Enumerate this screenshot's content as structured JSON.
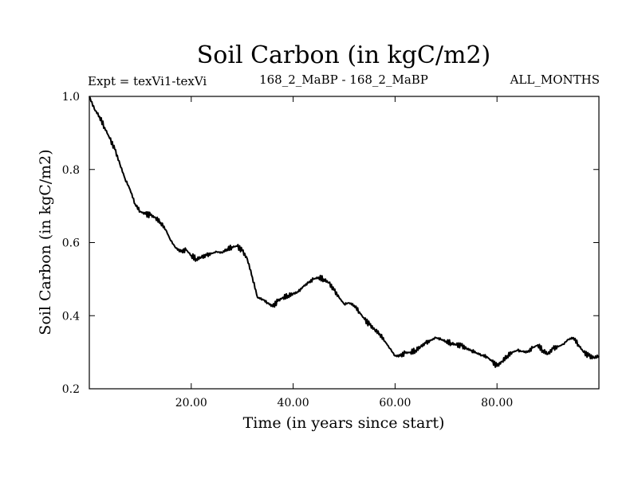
{
  "chart_data": {
    "type": "line",
    "title": "Soil Carbon (in kgC/m2)",
    "subtitle_left": "Expt = texVi1-texVi",
    "subtitle_center": "168_2_MaBP - 168_2_MaBP",
    "subtitle_right": "ALL_MONTHS",
    "xlabel": "Time (in years since start)",
    "ylabel": "Soil Carbon (in kgC/m2)",
    "xlim": [
      0,
      100
    ],
    "ylim": [
      0.2,
      1.0
    ],
    "x_ticks": [
      20,
      40,
      60,
      80
    ],
    "x_tick_labels": [
      "20.00",
      "40.00",
      "60.00",
      "80.00"
    ],
    "y_ticks": [
      0.2,
      0.4,
      0.6,
      0.8,
      1.0
    ],
    "y_tick_labels": [
      "0.2",
      "0.4",
      "0.6",
      "0.8",
      "1.0"
    ],
    "series": [
      {
        "name": "Soil Carbon",
        "color": "#000000",
        "x": [
          0,
          1,
          2,
          3,
          4,
          5,
          6,
          7,
          8,
          9,
          10,
          11,
          12,
          13,
          14,
          15,
          16,
          17,
          18,
          19,
          20,
          21,
          22,
          23,
          24,
          25,
          26,
          27,
          28,
          29,
          30,
          31,
          32,
          33,
          34,
          35,
          36,
          37,
          38,
          39,
          40,
          41,
          42,
          43,
          44,
          45,
          46,
          47,
          48,
          49,
          50,
          51,
          52,
          53,
          54,
          55,
          56,
          57,
          58,
          59,
          60,
          61,
          62,
          63,
          64,
          65,
          66,
          67,
          68,
          69,
          70,
          71,
          72,
          73,
          74,
          75,
          76,
          77,
          78,
          79,
          80,
          81,
          82,
          83,
          84,
          85,
          86,
          87,
          88,
          89,
          90,
          91,
          92,
          93,
          94,
          95,
          96,
          97,
          98,
          99,
          100
        ],
        "values": [
          1.0,
          0.965,
          0.945,
          0.915,
          0.885,
          0.855,
          0.815,
          0.775,
          0.745,
          0.705,
          0.685,
          0.678,
          0.675,
          0.668,
          0.655,
          0.635,
          0.605,
          0.585,
          0.575,
          0.58,
          0.565,
          0.555,
          0.56,
          0.565,
          0.57,
          0.575,
          0.572,
          0.582,
          0.588,
          0.59,
          0.578,
          0.555,
          0.505,
          0.45,
          0.445,
          0.435,
          0.425,
          0.44,
          0.45,
          0.455,
          0.46,
          0.465,
          0.48,
          0.49,
          0.5,
          0.505,
          0.5,
          0.49,
          0.47,
          0.45,
          0.432,
          0.435,
          0.428,
          0.41,
          0.39,
          0.375,
          0.362,
          0.35,
          0.33,
          0.31,
          0.29,
          0.29,
          0.298,
          0.3,
          0.305,
          0.315,
          0.325,
          0.332,
          0.34,
          0.335,
          0.33,
          0.325,
          0.32,
          0.318,
          0.31,
          0.305,
          0.298,
          0.292,
          0.288,
          0.275,
          0.262,
          0.275,
          0.29,
          0.3,
          0.305,
          0.302,
          0.3,
          0.312,
          0.32,
          0.305,
          0.295,
          0.31,
          0.315,
          0.322,
          0.335,
          0.34,
          0.32,
          0.3,
          0.29,
          0.285,
          0.29
        ]
      }
    ]
  }
}
